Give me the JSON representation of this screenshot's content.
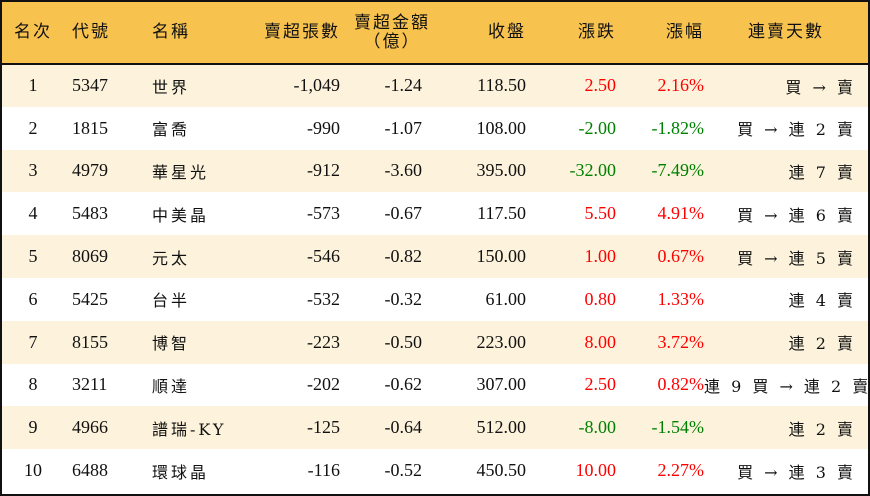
{
  "colors": {
    "header_bg": "#F8C24F",
    "row_odd_bg": "#FDF3DC",
    "row_even_bg": "#FFFFFF",
    "up": "#FF0000",
    "down": "#008000",
    "border": "#111111"
  },
  "header": {
    "rank": "名次",
    "code": "代號",
    "name": "名稱",
    "net_sell_volume": "賣超張數",
    "net_sell_amount_line1": "賣超金額",
    "net_sell_amount_line2": "（億）",
    "close": "收盤",
    "change": "漲跌",
    "change_pct": "漲幅",
    "streak": "連賣天數"
  },
  "rows": [
    {
      "rank": "1",
      "code": "5347",
      "name": "世界",
      "volume": "-1,049",
      "amount": "-1.24",
      "close": "118.50",
      "change": "2.50",
      "pct": "2.16%",
      "dir": "up",
      "streak": "買 → 賣"
    },
    {
      "rank": "2",
      "code": "1815",
      "name": "富喬",
      "volume": "-990",
      "amount": "-1.07",
      "close": "108.00",
      "change": "-2.00",
      "pct": "-1.82%",
      "dir": "down",
      "streak": "買 → 連 2 賣"
    },
    {
      "rank": "3",
      "code": "4979",
      "name": "華星光",
      "volume": "-912",
      "amount": "-3.60",
      "close": "395.00",
      "change": "-32.00",
      "pct": "-7.49%",
      "dir": "down",
      "streak": "連 7 賣"
    },
    {
      "rank": "4",
      "code": "5483",
      "name": "中美晶",
      "volume": "-573",
      "amount": "-0.67",
      "close": "117.50",
      "change": "5.50",
      "pct": "4.91%",
      "dir": "up",
      "streak": "買 → 連 6 賣"
    },
    {
      "rank": "5",
      "code": "8069",
      "name": "元太",
      "volume": "-546",
      "amount": "-0.82",
      "close": "150.00",
      "change": "1.00",
      "pct": "0.67%",
      "dir": "up",
      "streak": "買 → 連 5 賣"
    },
    {
      "rank": "6",
      "code": "5425",
      "name": "台半",
      "volume": "-532",
      "amount": "-0.32",
      "close": "61.00",
      "change": "0.80",
      "pct": "1.33%",
      "dir": "up",
      "streak": "連 4 賣"
    },
    {
      "rank": "7",
      "code": "8155",
      "name": "博智",
      "volume": "-223",
      "amount": "-0.50",
      "close": "223.00",
      "change": "8.00",
      "pct": "3.72%",
      "dir": "up",
      "streak": "連 2 賣"
    },
    {
      "rank": "8",
      "code": "3211",
      "name": "順達",
      "volume": "-202",
      "amount": "-0.62",
      "close": "307.00",
      "change": "2.50",
      "pct": "0.82%",
      "dir": "up",
      "streak": "連 9 買 → 連 2 賣"
    },
    {
      "rank": "9",
      "code": "4966",
      "name": "譜瑞-KY",
      "volume": "-125",
      "amount": "-0.64",
      "close": "512.00",
      "change": "-8.00",
      "pct": "-1.54%",
      "dir": "down",
      "streak": "連 2 賣"
    },
    {
      "rank": "10",
      "code": "6488",
      "name": "環球晶",
      "volume": "-116",
      "amount": "-0.52",
      "close": "450.50",
      "change": "10.00",
      "pct": "2.27%",
      "dir": "up",
      "streak": "買 → 連 3 賣"
    }
  ]
}
